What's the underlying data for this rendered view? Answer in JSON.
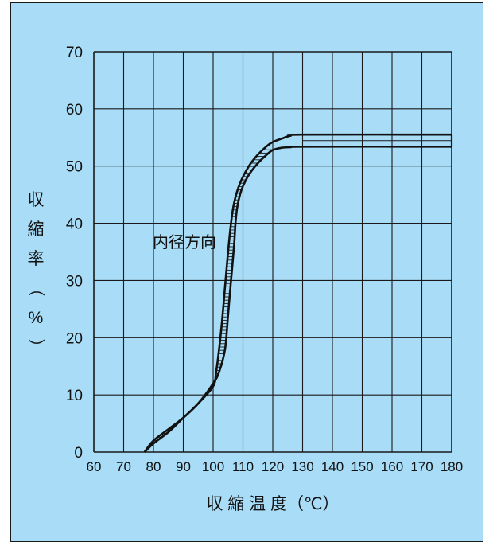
{
  "chart_data": {
    "type": "line",
    "title": "",
    "ylabel": [
      "収",
      "縮",
      "率",
      "（",
      "%",
      "）"
    ],
    "xlabel": "収 縮 温 度（℃）",
    "x_ticks": [
      60,
      70,
      80,
      90,
      100,
      110,
      120,
      130,
      140,
      150,
      160,
      170,
      180
    ],
    "y_ticks": [
      0,
      10,
      20,
      30,
      40,
      50,
      60,
      70
    ],
    "xlim": [
      60,
      180
    ],
    "ylim": [
      0,
      70
    ],
    "grid": true,
    "annotation": "内径方向",
    "series": [
      {
        "x": [
          77,
          80,
          85,
          90,
          95,
          100,
          102,
          104,
          105,
          106,
          107,
          107.5,
          108,
          109,
          110,
          112,
          115,
          118,
          120,
          123,
          126,
          130,
          180
        ],
        "y": [
          0,
          1.5,
          3.5,
          6,
          8.5,
          12,
          14,
          18,
          24,
          30,
          36,
          40,
          42.5,
          45,
          46.5,
          48.5,
          50.5,
          52,
          52.8,
          53.2,
          53.3,
          53.4,
          53.4
        ]
      },
      {
        "x": [
          77,
          80,
          85,
          90,
          95,
          100,
          101,
          102,
          103,
          104,
          105,
          106,
          107,
          109,
          112,
          115,
          118,
          120,
          123,
          126,
          130,
          180
        ],
        "y": [
          0,
          2,
          4,
          6,
          8.5,
          11.5,
          14,
          18,
          23,
          29,
          35,
          40,
          43.5,
          47,
          50,
          52,
          53.5,
          54.2,
          54.8,
          55.3,
          55.5,
          55.5
        ]
      }
    ],
    "hatch_fill": true
  }
}
